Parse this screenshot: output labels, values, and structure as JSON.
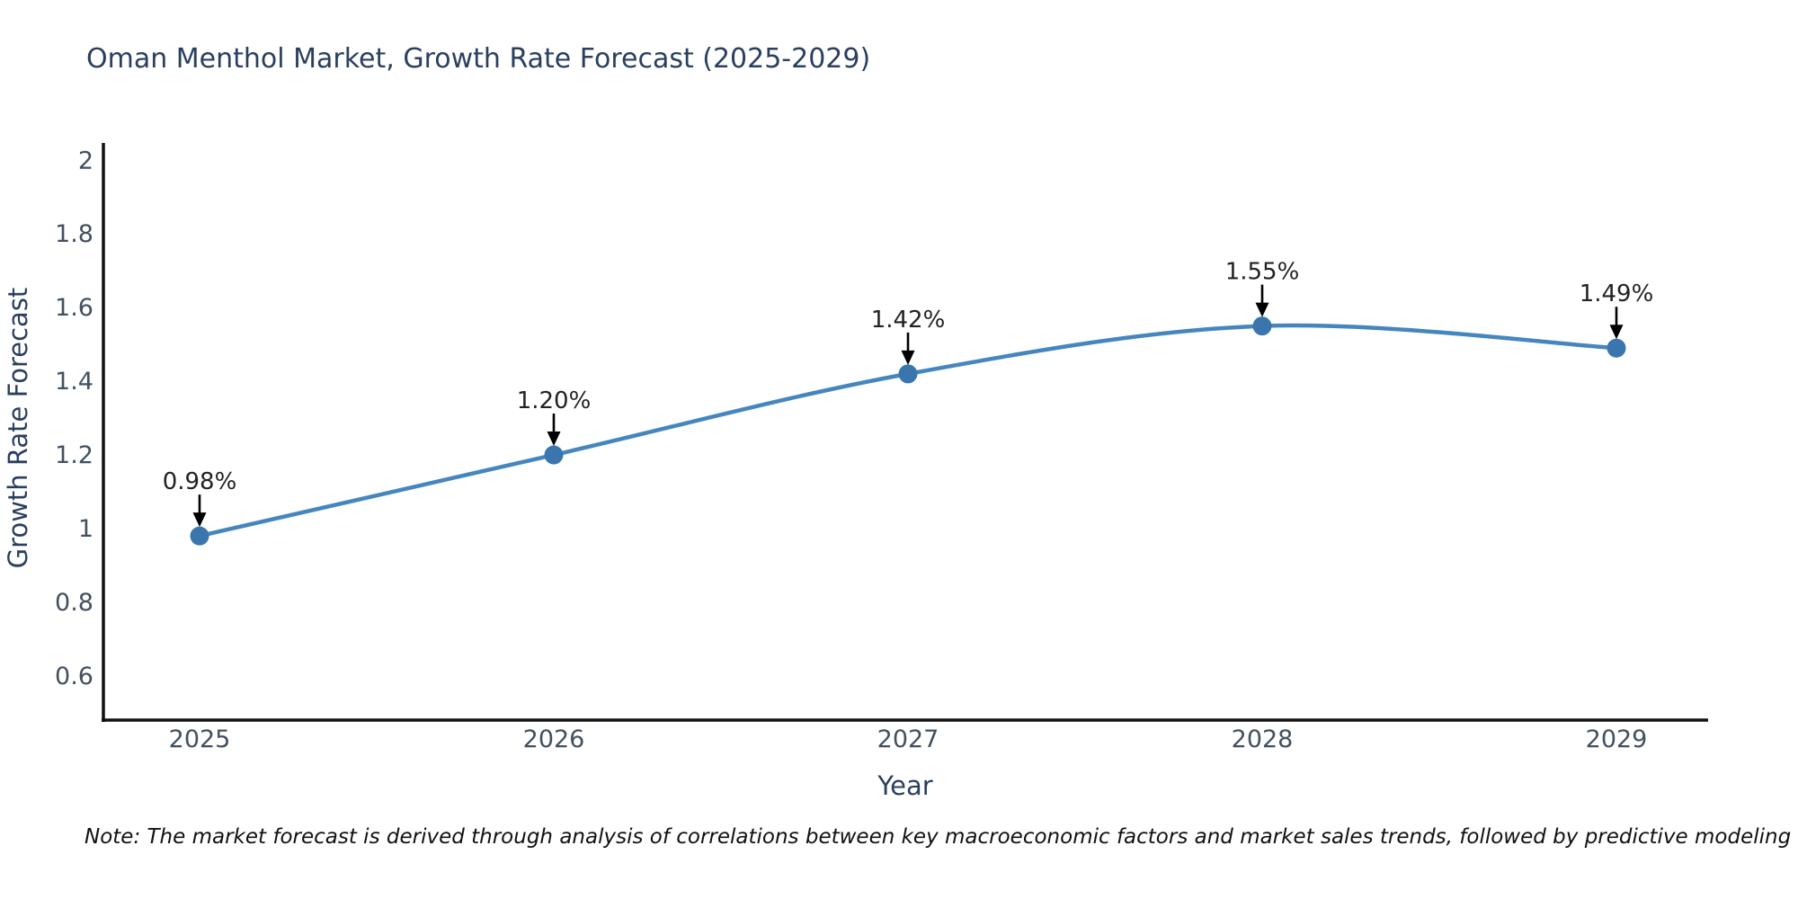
{
  "chart_data": {
    "type": "line",
    "title": "Oman Menthol Market, Growth Rate Forecast (2025-2029)",
    "xlabel": "Year",
    "ylabel": "Growth Rate Forecast",
    "categories": [
      "2025",
      "2026",
      "2027",
      "2028",
      "2029"
    ],
    "series": [
      {
        "name": "Growth Rate Forecast",
        "values": [
          0.98,
          1.2,
          1.42,
          1.55,
          1.49
        ],
        "point_labels": [
          "0.98%",
          "1.20%",
          "1.42%",
          "1.55%",
          "1.49%"
        ]
      }
    ],
    "yticks": [
      2,
      1.8,
      1.6,
      1.4,
      1.2,
      1,
      0.8,
      0.6
    ],
    "ylim": [
      0.48,
      2.047
    ],
    "grid": false,
    "legend_position": "none",
    "line_shape": "spline",
    "colors": {
      "line": "#4586bf",
      "marker": "#3a76ad",
      "axis": "#111111",
      "tick_label": "#42505f",
      "axis_title": "#2a3f5f",
      "title": "#2a3f5f",
      "annotation_text": "#222222",
      "annotation_arrow": "#000000"
    }
  },
  "note": {
    "text": "Note: The market forecast is derived through analysis of correlations between key macroeconomic factors and market sales trends, followed by predictive modeling to project future sales."
  }
}
